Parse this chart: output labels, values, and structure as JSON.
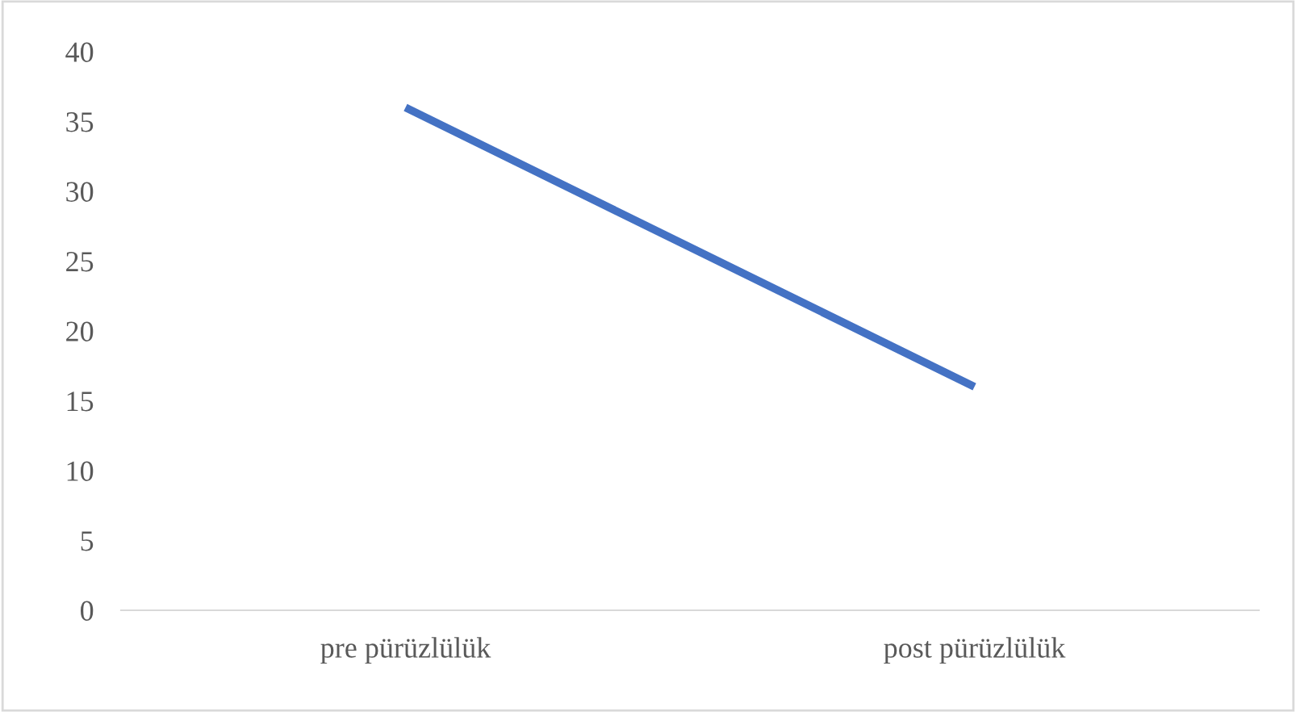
{
  "chart_data": {
    "type": "line",
    "categories": [
      "pre pürüzlülük",
      "post pürüzlülük"
    ],
    "series": [
      {
        "color": "#4472c4",
        "values": [
          36,
          16
        ]
      }
    ],
    "ylim": [
      0,
      40
    ],
    "yticks": [
      0,
      5,
      10,
      15,
      20,
      25,
      30,
      35,
      40
    ],
    "grid": false,
    "legend": false,
    "marker": "none",
    "line_style": "solid"
  }
}
